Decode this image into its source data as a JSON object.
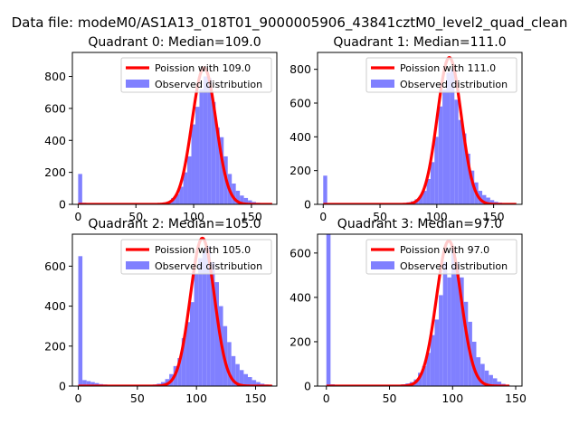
{
  "figure": {
    "suptitle": "Data file: modeM0/AS1A13_018T01_9000005906_43841cztM0_level2_quad_clean"
  },
  "chart_data": [
    {
      "type": "bar",
      "title": "Quadrant 0: Median=109.0",
      "xlim": [
        -5,
        172
      ],
      "ylim": [
        0,
        950
      ],
      "xticks": [
        0,
        50,
        100,
        150
      ],
      "yticks": [
        0,
        200,
        400,
        600,
        800
      ],
      "bin_width": 3.5,
      "legend": {
        "position": "top-right",
        "entries": [
          "Poission with 109.0",
          "Observed distribution"
        ]
      },
      "series": [
        {
          "name": "Poission with 109.0",
          "kind": "line",
          "color": "#ff0000",
          "lambda": 109.0,
          "peak": 855,
          "sigma": 10.4,
          "x_range": [
            0,
            168
          ]
        },
        {
          "name": "Observed distribution",
          "kind": "hist",
          "color": "#8080ff",
          "bins": [
            {
              "x": 0,
              "count": 190
            },
            {
              "x": 3.5,
              "count": 10
            },
            {
              "x": 7,
              "count": 8
            },
            {
              "x": 10.5,
              "count": 5
            },
            {
              "x": 14,
              "count": 5
            },
            {
              "x": 17.5,
              "count": 4
            },
            {
              "x": 21,
              "count": 3
            },
            {
              "x": 24.5,
              "count": 3
            },
            {
              "x": 28,
              "count": 3
            },
            {
              "x": 31.5,
              "count": 2
            },
            {
              "x": 35,
              "count": 2
            },
            {
              "x": 38.5,
              "count": 2
            },
            {
              "x": 42,
              "count": 2
            },
            {
              "x": 45.5,
              "count": 2
            },
            {
              "x": 49,
              "count": 3
            },
            {
              "x": 52.5,
              "count": 3
            },
            {
              "x": 56,
              "count": 3
            },
            {
              "x": 59.5,
              "count": 4
            },
            {
              "x": 63,
              "count": 5
            },
            {
              "x": 66.5,
              "count": 6
            },
            {
              "x": 70,
              "count": 8
            },
            {
              "x": 73.5,
              "count": 12
            },
            {
              "x": 77,
              "count": 18
            },
            {
              "x": 80.5,
              "count": 40
            },
            {
              "x": 84,
              "count": 65
            },
            {
              "x": 87.5,
              "count": 110
            },
            {
              "x": 91,
              "count": 200
            },
            {
              "x": 94.5,
              "count": 300
            },
            {
              "x": 98,
              "count": 500
            },
            {
              "x": 101.5,
              "count": 610
            },
            {
              "x": 105,
              "count": 720
            },
            {
              "x": 108.5,
              "count": 800
            },
            {
              "x": 112,
              "count": 790
            },
            {
              "x": 115.5,
              "count": 640
            },
            {
              "x": 119,
              "count": 480
            },
            {
              "x": 122.5,
              "count": 420
            },
            {
              "x": 126,
              "count": 300
            },
            {
              "x": 129.5,
              "count": 190
            },
            {
              "x": 133,
              "count": 130
            },
            {
              "x": 136.5,
              "count": 85
            },
            {
              "x": 140,
              "count": 55
            },
            {
              "x": 143.5,
              "count": 40
            },
            {
              "x": 147,
              "count": 25
            },
            {
              "x": 150.5,
              "count": 15
            },
            {
              "x": 154,
              "count": 10
            },
            {
              "x": 157.5,
              "count": 7
            },
            {
              "x": 161,
              "count": 5
            },
            {
              "x": 164.5,
              "count": 3
            }
          ]
        }
      ]
    },
    {
      "type": "bar",
      "title": "Quadrant 1: Median=111.0",
      "xlim": [
        -5,
        175
      ],
      "ylim": [
        0,
        900
      ],
      "xticks": [
        0,
        50,
        100,
        150
      ],
      "yticks": [
        0,
        200,
        400,
        600,
        800
      ],
      "bin_width": 3.5,
      "legend": {
        "position": "top-right",
        "entries": [
          "Poission with 111.0",
          "Observed distribution"
        ]
      },
      "series": [
        {
          "name": "Poission with 111.0",
          "kind": "line",
          "color": "#ff0000",
          "lambda": 111.0,
          "peak": 870,
          "sigma": 10.5,
          "x_range": [
            0,
            170
          ]
        },
        {
          "name": "Observed distribution",
          "kind": "hist",
          "color": "#8080ff",
          "bins": [
            {
              "x": 0,
              "count": 170
            },
            {
              "x": 3.5,
              "count": 8
            },
            {
              "x": 7,
              "count": 6
            },
            {
              "x": 10.5,
              "count": 5
            },
            {
              "x": 14,
              "count": 4
            },
            {
              "x": 17.5,
              "count": 3
            },
            {
              "x": 21,
              "count": 3
            },
            {
              "x": 24.5,
              "count": 3
            },
            {
              "x": 28,
              "count": 2
            },
            {
              "x": 31.5,
              "count": 2
            },
            {
              "x": 35,
              "count": 2
            },
            {
              "x": 38.5,
              "count": 2
            },
            {
              "x": 42,
              "count": 2
            },
            {
              "x": 45.5,
              "count": 2
            },
            {
              "x": 49,
              "count": 3
            },
            {
              "x": 52.5,
              "count": 3
            },
            {
              "x": 56,
              "count": 3
            },
            {
              "x": 59.5,
              "count": 4
            },
            {
              "x": 63,
              "count": 5
            },
            {
              "x": 66.5,
              "count": 6
            },
            {
              "x": 70,
              "count": 8
            },
            {
              "x": 73.5,
              "count": 12
            },
            {
              "x": 77,
              "count": 18
            },
            {
              "x": 80.5,
              "count": 30
            },
            {
              "x": 84,
              "count": 50
            },
            {
              "x": 87.5,
              "count": 80
            },
            {
              "x": 91,
              "count": 150
            },
            {
              "x": 94.5,
              "count": 250
            },
            {
              "x": 98,
              "count": 400
            },
            {
              "x": 101.5,
              "count": 580
            },
            {
              "x": 105,
              "count": 680
            },
            {
              "x": 108.5,
              "count": 780
            },
            {
              "x": 112,
              "count": 800
            },
            {
              "x": 115.5,
              "count": 620
            },
            {
              "x": 119,
              "count": 500
            },
            {
              "x": 122.5,
              "count": 420
            },
            {
              "x": 126,
              "count": 300
            },
            {
              "x": 129.5,
              "count": 200
            },
            {
              "x": 133,
              "count": 130
            },
            {
              "x": 136.5,
              "count": 80
            },
            {
              "x": 140,
              "count": 55
            },
            {
              "x": 143.5,
              "count": 40
            },
            {
              "x": 147,
              "count": 25
            },
            {
              "x": 150.5,
              "count": 15
            },
            {
              "x": 154,
              "count": 10
            },
            {
              "x": 157.5,
              "count": 6
            },
            {
              "x": 161,
              "count": 4
            },
            {
              "x": 164.5,
              "count": 3
            }
          ]
        }
      ]
    },
    {
      "type": "bar",
      "title": "Quadrant 2: Median=105.0",
      "xlim": [
        -5,
        168
      ],
      "ylim": [
        0,
        760
      ],
      "xticks": [
        0,
        50,
        100,
        150
      ],
      "yticks": [
        0,
        200,
        400,
        600
      ],
      "bin_width": 3.5,
      "legend": {
        "position": "top-right",
        "entries": [
          "Poission with 105.0",
          "Observed distribution"
        ]
      },
      "series": [
        {
          "name": "Poission with 105.0",
          "kind": "line",
          "color": "#ff0000",
          "lambda": 105.0,
          "peak": 740,
          "sigma": 10.2,
          "x_range": [
            0,
            164
          ]
        },
        {
          "name": "Observed distribution",
          "kind": "hist",
          "color": "#8080ff",
          "bins": [
            {
              "x": 0,
              "count": 650
            },
            {
              "x": 3.5,
              "count": 30
            },
            {
              "x": 7,
              "count": 25
            },
            {
              "x": 10.5,
              "count": 20
            },
            {
              "x": 14,
              "count": 15
            },
            {
              "x": 17.5,
              "count": 10
            },
            {
              "x": 21,
              "count": 8
            },
            {
              "x": 24.5,
              "count": 6
            },
            {
              "x": 28,
              "count": 5
            },
            {
              "x": 31.5,
              "count": 4
            },
            {
              "x": 35,
              "count": 4
            },
            {
              "x": 38.5,
              "count": 3
            },
            {
              "x": 42,
              "count": 3
            },
            {
              "x": 45.5,
              "count": 3
            },
            {
              "x": 49,
              "count": 3
            },
            {
              "x": 52.5,
              "count": 4
            },
            {
              "x": 56,
              "count": 5
            },
            {
              "x": 59.5,
              "count": 6
            },
            {
              "x": 63,
              "count": 8
            },
            {
              "x": 66.5,
              "count": 12
            },
            {
              "x": 70,
              "count": 20
            },
            {
              "x": 73.5,
              "count": 35
            },
            {
              "x": 77,
              "count": 60
            },
            {
              "x": 80.5,
              "count": 100
            },
            {
              "x": 84,
              "count": 140
            },
            {
              "x": 87.5,
              "count": 240
            },
            {
              "x": 91,
              "count": 320
            },
            {
              "x": 94.5,
              "count": 420
            },
            {
              "x": 98,
              "count": 560
            },
            {
              "x": 101.5,
              "count": 640
            },
            {
              "x": 105,
              "count": 690
            },
            {
              "x": 108.5,
              "count": 700
            },
            {
              "x": 112,
              "count": 620
            },
            {
              "x": 115.5,
              "count": 520
            },
            {
              "x": 119,
              "count": 400
            },
            {
              "x": 122.5,
              "count": 300
            },
            {
              "x": 126,
              "count": 220
            },
            {
              "x": 129.5,
              "count": 150
            },
            {
              "x": 133,
              "count": 110
            },
            {
              "x": 136.5,
              "count": 80
            },
            {
              "x": 140,
              "count": 60
            },
            {
              "x": 143.5,
              "count": 45
            },
            {
              "x": 147,
              "count": 30
            },
            {
              "x": 150.5,
              "count": 20
            },
            {
              "x": 154,
              "count": 12
            },
            {
              "x": 157.5,
              "count": 8
            },
            {
              "x": 161,
              "count": 4
            }
          ]
        }
      ]
    },
    {
      "type": "bar",
      "title": "Quadrant 3: Median=97.0",
      "xlim": [
        -7,
        155
      ],
      "ylim": [
        0,
        685
      ],
      "xticks": [
        0,
        50,
        100,
        150
      ],
      "yticks": [
        0,
        200,
        400,
        600
      ],
      "bin_width": 3.3,
      "legend": {
        "position": "top-right",
        "entries": [
          "Poission with 97.0",
          "Observed distribution"
        ]
      },
      "series": [
        {
          "name": "Poission with 97.0",
          "kind": "line",
          "color": "#ff0000",
          "lambda": 97.0,
          "peak": 655,
          "sigma": 9.8,
          "x_range": [
            0,
            145
          ]
        },
        {
          "name": "Observed distribution",
          "kind": "hist",
          "color": "#8080ff",
          "bins": [
            {
              "x": 0,
              "count": 685
            },
            {
              "x": 3.3,
              "count": 8
            },
            {
              "x": 6.6,
              "count": 6
            },
            {
              "x": 9.9,
              "count": 5
            },
            {
              "x": 13.2,
              "count": 4
            },
            {
              "x": 16.5,
              "count": 3
            },
            {
              "x": 19.8,
              "count": 3
            },
            {
              "x": 23.1,
              "count": 2
            },
            {
              "x": 26.4,
              "count": 2
            },
            {
              "x": 29.7,
              "count": 2
            },
            {
              "x": 33,
              "count": 2
            },
            {
              "x": 36.3,
              "count": 2
            },
            {
              "x": 39.6,
              "count": 2
            },
            {
              "x": 42.9,
              "count": 3
            },
            {
              "x": 46.2,
              "count": 3
            },
            {
              "x": 49.5,
              "count": 4
            },
            {
              "x": 52.8,
              "count": 5
            },
            {
              "x": 56.1,
              "count": 6
            },
            {
              "x": 59.4,
              "count": 8
            },
            {
              "x": 62.7,
              "count": 12
            },
            {
              "x": 66,
              "count": 18
            },
            {
              "x": 69.3,
              "count": 30
            },
            {
              "x": 72.6,
              "count": 60
            },
            {
              "x": 75.9,
              "count": 90
            },
            {
              "x": 79.2,
              "count": 150
            },
            {
              "x": 82.5,
              "count": 230
            },
            {
              "x": 85.8,
              "count": 300
            },
            {
              "x": 89.1,
              "count": 410
            },
            {
              "x": 92.4,
              "count": 560
            },
            {
              "x": 95.7,
              "count": 490
            },
            {
              "x": 99,
              "count": 620
            },
            {
              "x": 102.3,
              "count": 560
            },
            {
              "x": 105.6,
              "count": 490
            },
            {
              "x": 108.9,
              "count": 380
            },
            {
              "x": 112.2,
              "count": 290
            },
            {
              "x": 115.5,
              "count": 200
            },
            {
              "x": 118.8,
              "count": 130
            },
            {
              "x": 122.1,
              "count": 100
            },
            {
              "x": 125.4,
              "count": 70
            },
            {
              "x": 128.7,
              "count": 50
            },
            {
              "x": 132,
              "count": 35
            },
            {
              "x": 135.3,
              "count": 20
            },
            {
              "x": 138.6,
              "count": 10
            },
            {
              "x": 141.9,
              "count": 5
            }
          ]
        }
      ]
    }
  ]
}
